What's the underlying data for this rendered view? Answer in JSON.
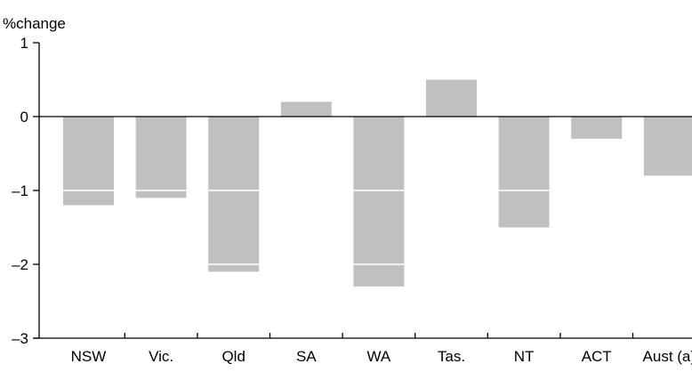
{
  "caption": "",
  "chart_data": {
    "type": "bar",
    "title": "",
    "ylabel": "%change",
    "xlabel": "",
    "categories": [
      "NSW",
      "Vic.",
      "Qld",
      "SA",
      "WA",
      "Tas.",
      "NT",
      "ACT",
      "Aust (a)"
    ],
    "series": [
      {
        "values": [
          -1.2,
          -1.1,
          -2.1,
          0.2,
          -2.3,
          0.5,
          -1.5,
          -0.3,
          -0.8
        ]
      }
    ],
    "ylim": [
      -3,
      1
    ],
    "yticks": [
      1,
      0,
      -1,
      -2,
      -3
    ],
    "ytick_labels": [
      "1",
      "0",
      "–1",
      "–2",
      "–3"
    ],
    "grid": false,
    "bar_color": "#c0c0c0",
    "axis_color": "#000000"
  }
}
